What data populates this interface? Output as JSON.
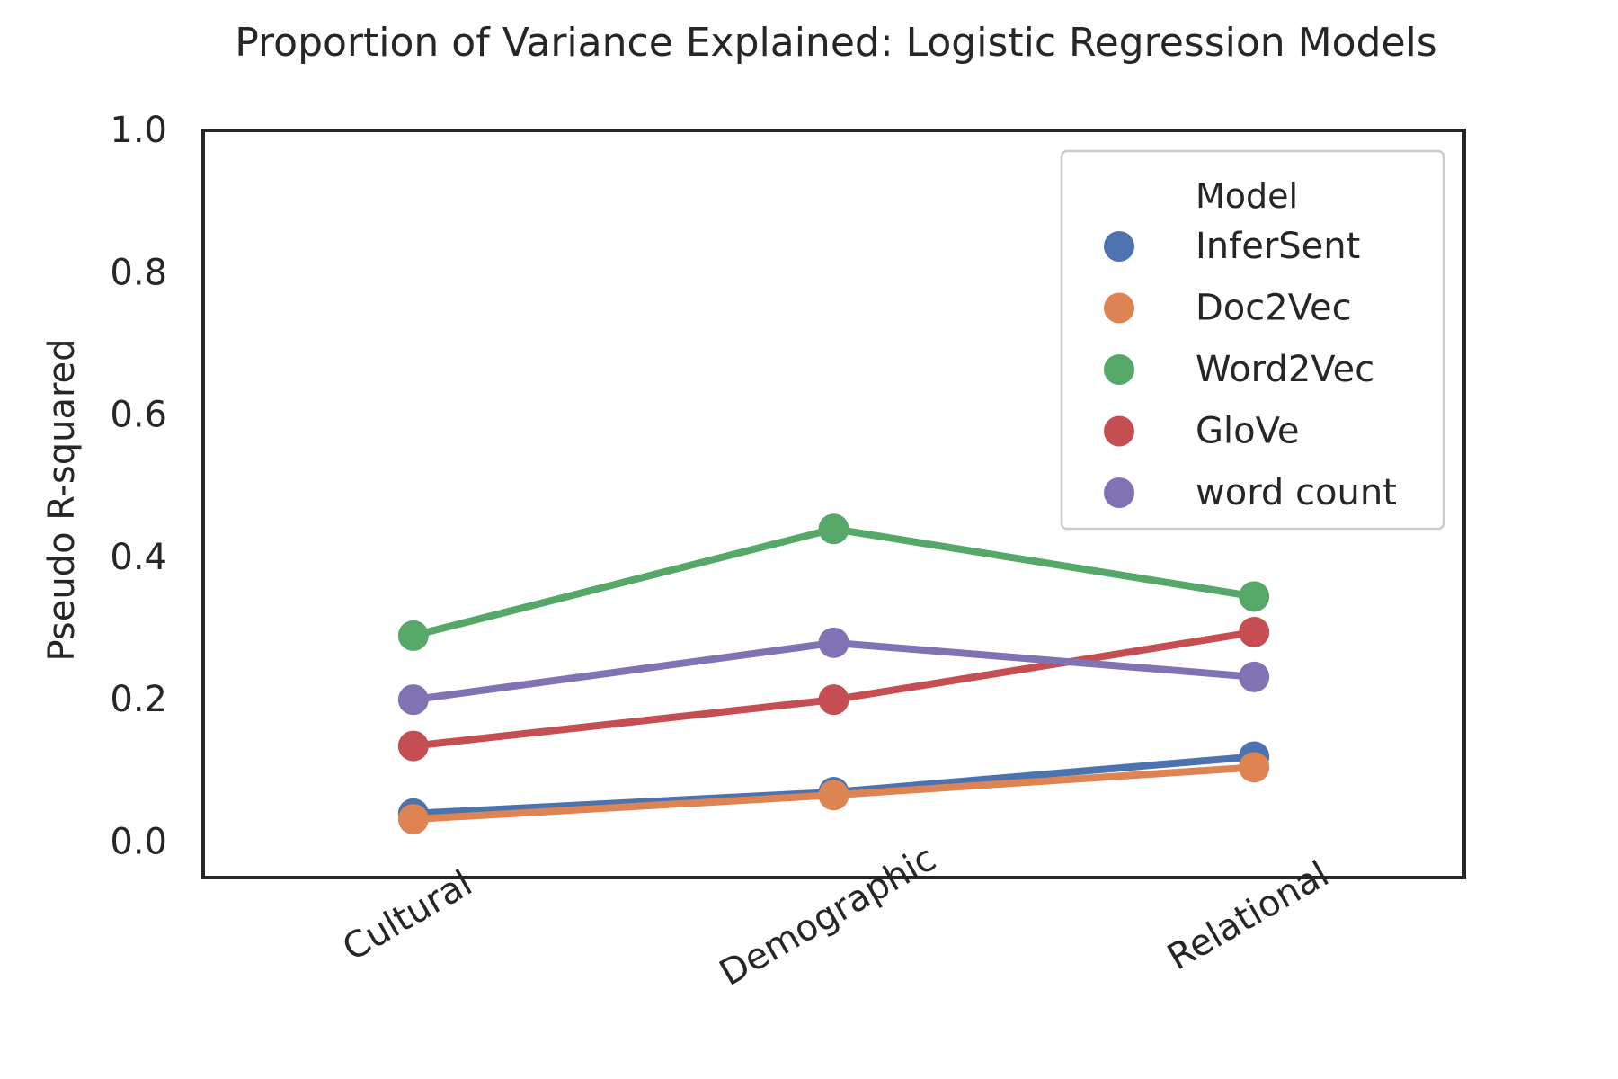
{
  "chart_data": {
    "type": "line",
    "title": "Proportion of Variance Explained: Logistic Regression Models",
    "xlabel": "",
    "ylabel": "Pseudo R-squared",
    "categories": [
      "Cultural",
      "Demographic",
      "Relational"
    ],
    "ylim": [
      -0.05,
      1.0
    ],
    "yticks": [
      "0.0",
      "0.2",
      "0.4",
      "0.6",
      "0.8",
      "1.0"
    ],
    "grid": false,
    "legend": {
      "title": "Model",
      "placement": "top-right"
    },
    "series": [
      {
        "name": "InferSent",
        "color": "#4c72b0",
        "values": [
          0.04,
          0.07,
          0.12
        ]
      },
      {
        "name": "Doc2Vec",
        "color": "#dd8452",
        "values": [
          0.032,
          0.066,
          0.105
        ]
      },
      {
        "name": "Word2Vec",
        "color": "#55a868",
        "values": [
          0.29,
          0.44,
          0.345
        ]
      },
      {
        "name": "GloVe",
        "color": "#c44e52",
        "values": [
          0.135,
          0.2,
          0.295
        ]
      },
      {
        "name": "word count",
        "color": "#8172b3",
        "values": [
          0.2,
          0.28,
          0.232
        ]
      }
    ]
  }
}
